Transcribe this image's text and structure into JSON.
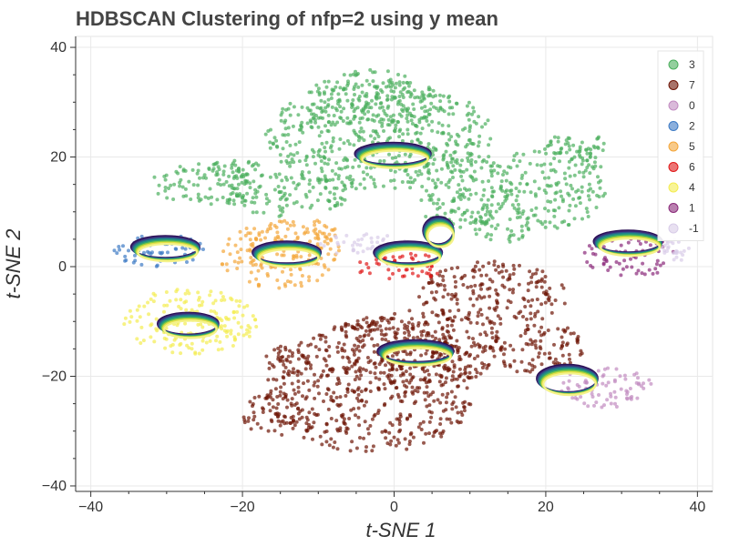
{
  "chart_data": {
    "type": "scatter",
    "title": "HDBSCAN Clustering of nfp=2 using y mean",
    "xlabel": "t-SNE 1",
    "ylabel": "t-SNE 2",
    "xlim": [
      -42,
      42
    ],
    "ylim": [
      -41,
      42
    ],
    "xticks": [
      -40,
      -20,
      0,
      20,
      40
    ],
    "yticks": [
      -40,
      -20,
      0,
      20,
      40
    ],
    "xtick_labels": [
      "−40",
      "−20",
      "0",
      "20",
      "40"
    ],
    "ytick_labels": [
      "−40",
      "−20",
      "0",
      "20",
      "40"
    ],
    "grid": true,
    "legend_position": "top-right",
    "series": [
      {
        "name": "3",
        "color": "#4caf5e",
        "regions": [
          {
            "cx": -2,
            "cy": 24,
            "rx": 15,
            "ry": 10
          },
          {
            "cx": -3,
            "cy": 30,
            "rx": 9,
            "ry": 6
          },
          {
            "cx": 9,
            "cy": 14,
            "rx": 7,
            "ry": 7
          },
          {
            "cx": -14,
            "cy": 13,
            "rx": 8,
            "ry": 4
          },
          {
            "cx": -25,
            "cy": 15,
            "rx": 7,
            "ry": 4
          },
          {
            "cx": -21,
            "cy": 17,
            "rx": 4,
            "ry": 3
          },
          {
            "cx": 21,
            "cy": 15,
            "rx": 7,
            "ry": 8
          },
          {
            "cx": 24,
            "cy": 22,
            "rx": 4,
            "ry": 3
          },
          {
            "cx": 14,
            "cy": 8,
            "rx": 4,
            "ry": 4
          }
        ]
      },
      {
        "name": "7",
        "color": "#6e1506",
        "regions": [
          {
            "cx": -3,
            "cy": -22,
            "rx": 14,
            "ry": 12
          },
          {
            "cx": 3,
            "cy": -15,
            "rx": 12,
            "ry": 7
          },
          {
            "cx": 13,
            "cy": -5,
            "rx": 10,
            "ry": 6
          },
          {
            "cx": 19,
            "cy": -15,
            "rx": 6,
            "ry": 5
          },
          {
            "cx": -16,
            "cy": -27,
            "rx": 4,
            "ry": 4
          },
          {
            "cx": -14,
            "cy": -17,
            "rx": 3,
            "ry": 3
          }
        ]
      },
      {
        "name": "0",
        "color": "#c28cc1",
        "regions": [
          {
            "cx": 28,
            "cy": -22,
            "rx": 6,
            "ry": 4
          }
        ]
      },
      {
        "name": "2",
        "color": "#3d7ac4",
        "regions": [
          {
            "cx": -31,
            "cy": 3,
            "rx": 6,
            "ry": 3
          }
        ]
      },
      {
        "name": "5",
        "color": "#f4a63a",
        "regions": [
          {
            "cx": -15,
            "cy": 2,
            "rx": 8,
            "ry": 6
          },
          {
            "cx": -12,
            "cy": 6,
            "rx": 5,
            "ry": 3
          }
        ]
      },
      {
        "name": "6",
        "color": "#e01818",
        "regions": [
          {
            "cx": 1,
            "cy": 0,
            "rx": 6,
            "ry": 2.5
          }
        ]
      },
      {
        "name": "4",
        "color": "#f4ec50",
        "regions": [
          {
            "cx": -27,
            "cy": -10,
            "rx": 9,
            "ry": 6
          }
        ]
      },
      {
        "name": "1",
        "color": "#8a2a7a",
        "regions": [
          {
            "cx": 31,
            "cy": 2,
            "rx": 6,
            "ry": 4
          }
        ]
      },
      {
        "name": "-1",
        "color": "#d8cce8",
        "regions": [
          {
            "cx": -4,
            "cy": 4,
            "rx": 6,
            "ry": 2
          },
          {
            "cx": 37,
            "cy": 3,
            "rx": 2,
            "ry": 2
          }
        ]
      }
    ],
    "prototype_shapes": [
      {
        "cx": 0,
        "cy": 20,
        "rx": 5,
        "ry": 2
      },
      {
        "cx": -30,
        "cy": 3,
        "rx": 4.5,
        "ry": 2
      },
      {
        "cx": -14,
        "cy": 2,
        "rx": 4.5,
        "ry": 2
      },
      {
        "cx": -27,
        "cy": -11,
        "rx": 4,
        "ry": 2
      },
      {
        "cx": 2,
        "cy": 2,
        "rx": 4.5,
        "ry": 2
      },
      {
        "cx": 6,
        "cy": 6,
        "rx": 2,
        "ry": 2.5
      },
      {
        "cx": 3,
        "cy": -16,
        "rx": 5,
        "ry": 2
      },
      {
        "cx": 31,
        "cy": 4,
        "rx": 4.5,
        "ry": 2
      },
      {
        "cx": 23,
        "cy": -21,
        "rx": 4,
        "ry": 2.5
      }
    ]
  }
}
